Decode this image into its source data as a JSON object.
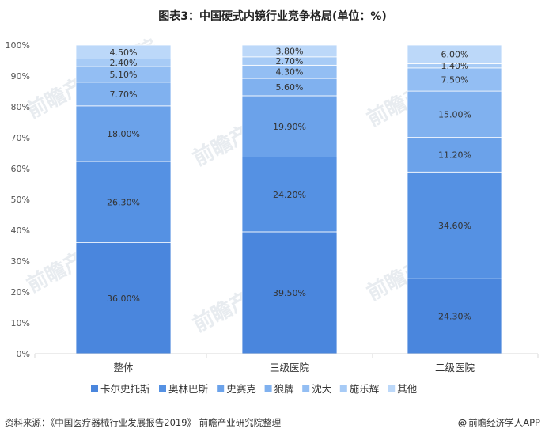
{
  "chart_data": {
    "type": "bar",
    "stacked": true,
    "title": "图表3：中国硬式内镜行业竞争格局(单位：%)",
    "categories": [
      "整体",
      "三级医院",
      "二级医院"
    ],
    "ylim": [
      0,
      100
    ],
    "yticks": [
      "0%",
      "10%",
      "20%",
      "30%",
      "40%",
      "50%",
      "60%",
      "70%",
      "80%",
      "90%",
      "100%"
    ],
    "legend_position": "bottom",
    "grid": false,
    "series": [
      {
        "name": "卡尔史托斯",
        "values": [
          36.0,
          39.5,
          24.3
        ],
        "labels": [
          "36.00%",
          "39.50%",
          "24.30%"
        ],
        "color": "#4a86dd"
      },
      {
        "name": "奥林巴斯",
        "values": [
          26.3,
          24.2,
          34.6
        ],
        "labels": [
          "26.30%",
          "24.20%",
          "34.60%"
        ],
        "color": "#5591e3"
      },
      {
        "name": "史赛克",
        "values": [
          18.0,
          19.9,
          11.2
        ],
        "labels": [
          "18.00%",
          "19.90%",
          "11.20%"
        ],
        "color": "#6ba2ea"
      },
      {
        "name": "狼牌",
        "values": [
          7.7,
          5.6,
          15.0
        ],
        "labels": [
          "7.70%",
          "5.60%",
          "15.00%"
        ],
        "color": "#80b1ef"
      },
      {
        "name": "沈大",
        "values": [
          5.1,
          4.3,
          7.5
        ],
        "labels": [
          "5.10%",
          "4.30%",
          "7.50%"
        ],
        "color": "#93bef3"
      },
      {
        "name": "施乐辉",
        "values": [
          2.4,
          2.7,
          1.4
        ],
        "labels": [
          "2.40%",
          "2.70%",
          "1.40%"
        ],
        "color": "#a7cbf6"
      },
      {
        "name": "其他",
        "values": [
          4.5,
          3.8,
          6.0
        ],
        "labels": [
          "4.50%",
          "3.80%",
          "6.00%"
        ],
        "color": "#bcd8f9"
      }
    ]
  },
  "footer": {
    "source": "资料来源：《中国医疗器械行业发展报告2019》 前瞻产业研究院整理",
    "brand_at": "@",
    "brand": "前瞻经济学人APP"
  },
  "watermark": {
    "text": "前瞻产业研究院",
    "color": "#e8ecf0"
  },
  "colors": {
    "axis": "#d9d9d9",
    "tick_text": "#555555",
    "label_text": "#333333"
  }
}
